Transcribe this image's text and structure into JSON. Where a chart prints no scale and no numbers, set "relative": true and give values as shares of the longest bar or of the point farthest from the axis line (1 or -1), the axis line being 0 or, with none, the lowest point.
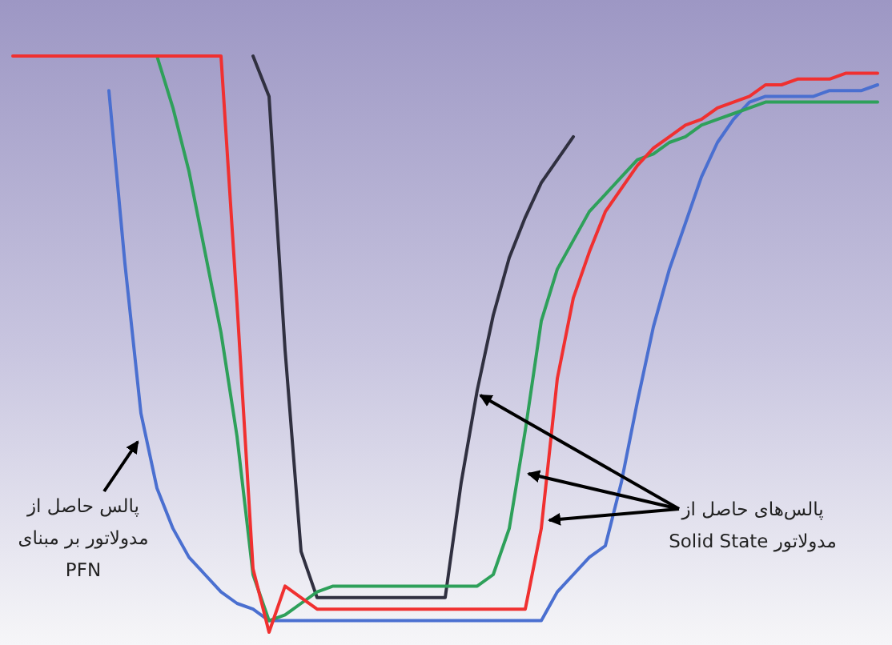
{
  "chart_data": {
    "type": "line",
    "relative": true,
    "categories": [
      null,
      null,
      null,
      null,
      null,
      null,
      null,
      null,
      null,
      null,
      null,
      null,
      null,
      null,
      null,
      null,
      null,
      null,
      null,
      null,
      null,
      null,
      null,
      null,
      null,
      null,
      null,
      null,
      null,
      null,
      null,
      null,
      null,
      null,
      null,
      null,
      null,
      null,
      null,
      null,
      null,
      null,
      null,
      null,
      null,
      null,
      null,
      null,
      null,
      null,
      null,
      null,
      null,
      null,
      null
    ],
    "series": [
      {
        "color": "#303040",
        "values": [
          null,
          null,
          null,
          null,
          null,
          null,
          null,
          null,
          null,
          null,
          null,
          null,
          null,
          null,
          null,
          1,
          0.93,
          0.49,
          0.14,
          0.06,
          0.06,
          0.06,
          0.06,
          0.06,
          0.06,
          0.06,
          0.06,
          0.06,
          0.26,
          0.42,
          0.55,
          0.65,
          0.72,
          0.78,
          0.82,
          0.86,
          null,
          null,
          null,
          null,
          null,
          null,
          null,
          null,
          null,
          null,
          null,
          null,
          null,
          null,
          null,
          null,
          null,
          null,
          null
        ]
      },
      {
        "color": "#4a6fd0",
        "values": [
          null,
          null,
          null,
          null,
          null,
          null,
          0.94,
          0.64,
          0.38,
          0.25,
          0.18,
          0.13,
          0.1,
          0.07,
          0.05,
          0.04,
          0.02,
          0.02,
          0.02,
          0.02,
          0.02,
          0.02,
          0.02,
          0.02,
          0.02,
          0.02,
          0.02,
          0.02,
          0.02,
          0.02,
          0.02,
          0.02,
          0.02,
          0.02,
          0.07,
          0.1,
          0.13,
          0.15,
          0.26,
          0.4,
          0.53,
          0.63,
          0.71,
          0.79,
          0.85,
          0.89,
          0.92,
          0.93,
          0.93,
          0.93,
          0.93,
          0.94,
          0.94,
          0.94,
          0.95
        ]
      },
      {
        "color": "#2ea05a",
        "values": [
          null,
          null,
          null,
          null,
          null,
          null,
          null,
          null,
          null,
          1,
          0.91,
          0.8,
          0.66,
          0.52,
          0.34,
          0.1,
          0.02,
          0.03,
          0.05,
          0.07,
          0.08,
          0.08,
          0.08,
          0.08,
          0.08,
          0.08,
          0.08,
          0.08,
          0.08,
          0.08,
          0.1,
          0.18,
          0.35,
          0.54,
          0.63,
          0.68,
          0.73,
          0.76,
          0.79,
          0.82,
          0.83,
          0.85,
          0.86,
          0.88,
          0.89,
          0.9,
          0.91,
          0.92,
          0.92,
          0.92,
          0.92,
          0.92,
          0.92,
          0.92,
          0.92
        ]
      },
      {
        "color": "#f03030",
        "values": [
          1,
          1,
          1,
          1,
          1,
          1,
          1,
          1,
          1,
          1,
          1,
          1,
          1,
          1,
          0.57,
          0.11,
          0,
          0.08,
          0.06,
          0.04,
          0.04,
          0.04,
          0.04,
          0.04,
          0.04,
          0.04,
          0.04,
          0.04,
          0.04,
          0.04,
          0.04,
          0.04,
          0.04,
          0.18,
          0.44,
          0.58,
          0.66,
          0.73,
          0.77,
          0.81,
          0.84,
          0.86,
          0.88,
          0.89,
          0.91,
          0.92,
          0.93,
          0.95,
          0.95,
          0.96,
          0.96,
          0.96,
          0.97,
          0.97,
          0.97
        ]
      }
    ],
    "annotations": [
      "پالس حاصل از\nمدولاتور بر مبنای\nPFN",
      "پالس‌های حاصل از\nمدولاتور Solid State"
    ]
  }
}
